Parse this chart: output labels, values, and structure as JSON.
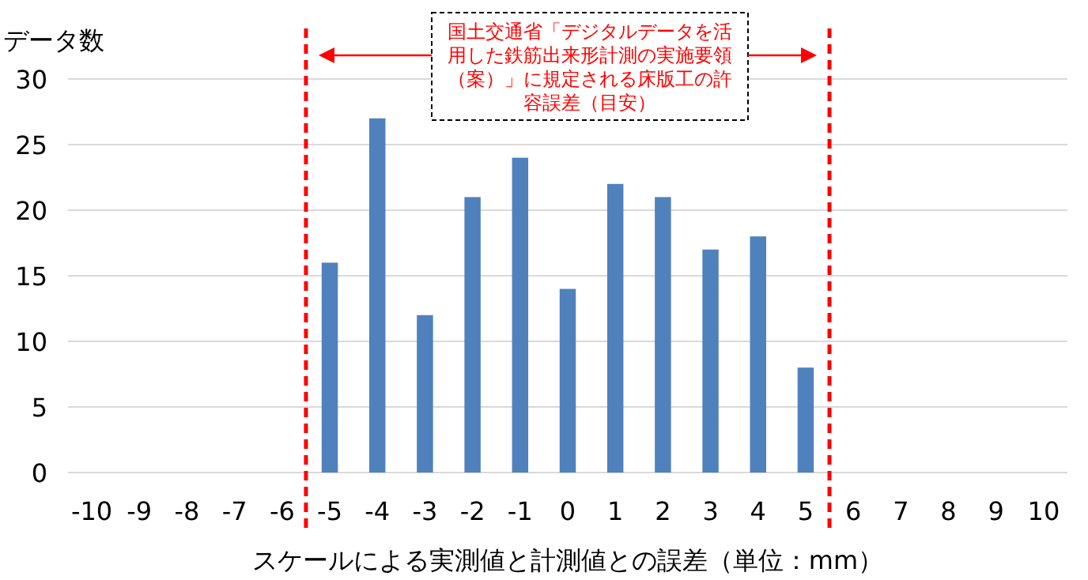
{
  "chart_data": {
    "type": "bar",
    "ylabel": "データ数",
    "xlabel": "スケールによる実測値と計測値との誤差（単位：mm）",
    "x": [
      -5,
      -4,
      -3,
      -2,
      -1,
      0,
      1,
      2,
      3,
      4,
      5
    ],
    "values": [
      16,
      27,
      12,
      21,
      24,
      14,
      22,
      21,
      17,
      18,
      8
    ],
    "color": "#4f81bd",
    "xlim": [
      -10.5,
      10.5
    ],
    "xticks": [
      -10,
      -9,
      -8,
      -7,
      -6,
      -5,
      -4,
      -3,
      -2,
      -1,
      0,
      1,
      2,
      3,
      4,
      5,
      6,
      7,
      8,
      9,
      10
    ],
    "ylim": [
      0,
      30
    ],
    "yticks": [
      0,
      5,
      10,
      15,
      20,
      25,
      30
    ],
    "grid": "y",
    "ref_lines": [
      {
        "axis": "x",
        "value": -5.5,
        "color": "#ff0000",
        "line_style": "dashed"
      },
      {
        "axis": "x",
        "value": 5.5,
        "color": "#ff0000",
        "line_style": "dashed"
      }
    ],
    "annotations": [
      "国土交通省「デジタルデータを活用した鉄筋出来形計測の実施要領（案）」に規定される床版工の許容誤差（目安）"
    ]
  }
}
